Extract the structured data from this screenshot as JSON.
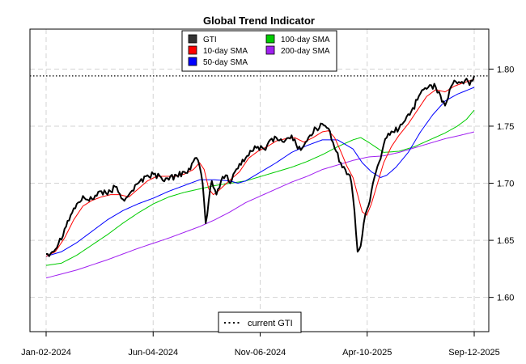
{
  "chart_data": {
    "type": "line",
    "title": "Global Trend Indicator",
    "xlabel": "",
    "ylabel": "",
    "ylim": [
      1.57,
      1.835
    ],
    "x_ticks": [
      "Jan-02-2024",
      "Jun-04-2024",
      "Nov-06-2024",
      "Apr-10-2025",
      "Sep-12-2025"
    ],
    "y_ticks": [
      "1.60",
      "1.65",
      "1.70",
      "1.75",
      "1.80"
    ],
    "y_tick_values": [
      1.6,
      1.65,
      1.7,
      1.75,
      1.8
    ],
    "grid": true,
    "current_gti": 1.794,
    "legend": {
      "top": [
        {
          "label": "GTI",
          "color": "#333333"
        },
        {
          "label": "100-day SMA",
          "color": "#00cc00"
        },
        {
          "label": "10-day SMA",
          "color": "#ff0000"
        },
        {
          "label": "200-day SMA",
          "color": "#a020f0"
        },
        {
          "label": "50-day SMA",
          "color": "#0000ff"
        }
      ],
      "bottom": {
        "label": "current GTI"
      }
    },
    "series": [
      {
        "name": "GTI",
        "color": "#000000",
        "anchors": [
          [
            0,
            1.638
          ],
          [
            4,
            1.64
          ],
          [
            8,
            1.647
          ],
          [
            12,
            1.66
          ],
          [
            16,
            1.672
          ],
          [
            20,
            1.682
          ],
          [
            25,
            1.687
          ],
          [
            30,
            1.686
          ],
          [
            35,
            1.693
          ],
          [
            40,
            1.69
          ],
          [
            45,
            1.697
          ],
          [
            50,
            1.686
          ],
          [
            55,
            1.692
          ],
          [
            60,
            1.7
          ],
          [
            65,
            1.706
          ],
          [
            70,
            1.708
          ],
          [
            75,
            1.705
          ],
          [
            80,
            1.703
          ],
          [
            85,
            1.707
          ],
          [
            90,
            1.71
          ],
          [
            94,
            1.712
          ],
          [
            97,
            1.722
          ],
          [
            100,
            1.715
          ],
          [
            102,
            1.7
          ],
          [
            104,
            1.665
          ],
          [
            106,
            1.685
          ],
          [
            108,
            1.702
          ],
          [
            111,
            1.69
          ],
          [
            114,
            1.702
          ],
          [
            117,
            1.707
          ],
          [
            120,
            1.7
          ],
          [
            123,
            1.71
          ],
          [
            126,
            1.717
          ],
          [
            130,
            1.722
          ],
          [
            134,
            1.728
          ],
          [
            138,
            1.732
          ],
          [
            142,
            1.73
          ],
          [
            146,
            1.738
          ],
          [
            150,
            1.74
          ],
          [
            155,
            1.736
          ],
          [
            160,
            1.742
          ],
          [
            164,
            1.73
          ],
          [
            168,
            1.733
          ],
          [
            172,
            1.742
          ],
          [
            176,
            1.748
          ],
          [
            180,
            1.752
          ],
          [
            184,
            1.748
          ],
          [
            186,
            1.738
          ],
          [
            189,
            1.728
          ],
          [
            192,
            1.718
          ],
          [
            195,
            1.712
          ],
          [
            197,
            1.708
          ],
          [
            199,
            1.7
          ],
          [
            201,
            1.675
          ],
          [
            203,
            1.64
          ],
          [
            205,
            1.645
          ],
          [
            207,
            1.665
          ],
          [
            210,
            1.68
          ],
          [
            213,
            1.7
          ],
          [
            216,
            1.715
          ],
          [
            219,
            1.728
          ],
          [
            222,
            1.74
          ],
          [
            226,
            1.745
          ],
          [
            230,
            1.748
          ],
          [
            234,
            1.755
          ],
          [
            238,
            1.763
          ],
          [
            242,
            1.773
          ],
          [
            246,
            1.782
          ],
          [
            250,
            1.786
          ],
          [
            254,
            1.784
          ],
          [
            257,
            1.777
          ],
          [
            260,
            1.768
          ],
          [
            263,
            1.782
          ],
          [
            266,
            1.79
          ],
          [
            270,
            1.788
          ],
          [
            273,
            1.79
          ],
          [
            276,
            1.786
          ],
          [
            279,
            1.794
          ]
        ]
      },
      {
        "name": "10-day SMA",
        "color": "#ff0000",
        "anchors": [
          [
            0,
            1.636
          ],
          [
            6,
            1.64
          ],
          [
            12,
            1.652
          ],
          [
            18,
            1.668
          ],
          [
            24,
            1.68
          ],
          [
            30,
            1.685
          ],
          [
            36,
            1.688
          ],
          [
            42,
            1.69
          ],
          [
            48,
            1.69
          ],
          [
            54,
            1.688
          ],
          [
            60,
            1.695
          ],
          [
            66,
            1.702
          ],
          [
            72,
            1.706
          ],
          [
            78,
            1.706
          ],
          [
            84,
            1.706
          ],
          [
            90,
            1.708
          ],
          [
            96,
            1.712
          ],
          [
            100,
            1.718
          ],
          [
            103,
            1.712
          ],
          [
            106,
            1.695
          ],
          [
            109,
            1.69
          ],
          [
            112,
            1.693
          ],
          [
            116,
            1.698
          ],
          [
            120,
            1.703
          ],
          [
            126,
            1.71
          ],
          [
            132,
            1.722
          ],
          [
            138,
            1.728
          ],
          [
            144,
            1.732
          ],
          [
            150,
            1.737
          ],
          [
            156,
            1.739
          ],
          [
            162,
            1.74
          ],
          [
            168,
            1.736
          ],
          [
            174,
            1.74
          ],
          [
            180,
            1.745
          ],
          [
            184,
            1.746
          ],
          [
            188,
            1.74
          ],
          [
            192,
            1.728
          ],
          [
            196,
            1.715
          ],
          [
            200,
            1.705
          ],
          [
            203,
            1.69
          ],
          [
            206,
            1.675
          ],
          [
            209,
            1.672
          ],
          [
            212,
            1.682
          ],
          [
            216,
            1.7
          ],
          [
            220,
            1.718
          ],
          [
            225,
            1.732
          ],
          [
            230,
            1.742
          ],
          [
            236,
            1.752
          ],
          [
            242,
            1.764
          ],
          [
            248,
            1.776
          ],
          [
            254,
            1.782
          ],
          [
            260,
            1.78
          ],
          [
            266,
            1.785
          ],
          [
            272,
            1.788
          ],
          [
            279,
            1.791
          ]
        ]
      },
      {
        "name": "50-day SMA",
        "color": "#0000ff",
        "anchors": [
          [
            0,
            1.636
          ],
          [
            10,
            1.64
          ],
          [
            20,
            1.648
          ],
          [
            30,
            1.658
          ],
          [
            40,
            1.668
          ],
          [
            50,
            1.676
          ],
          [
            60,
            1.682
          ],
          [
            70,
            1.687
          ],
          [
            80,
            1.693
          ],
          [
            90,
            1.698
          ],
          [
            100,
            1.703
          ],
          [
            110,
            1.703
          ],
          [
            120,
            1.702
          ],
          [
            125,
            1.7
          ],
          [
            130,
            1.702
          ],
          [
            140,
            1.71
          ],
          [
            150,
            1.718
          ],
          [
            160,
            1.727
          ],
          [
            170,
            1.733
          ],
          [
            180,
            1.738
          ],
          [
            190,
            1.738
          ],
          [
            200,
            1.73
          ],
          [
            206,
            1.718
          ],
          [
            212,
            1.71
          ],
          [
            218,
            1.705
          ],
          [
            222,
            1.707
          ],
          [
            228,
            1.714
          ],
          [
            236,
            1.727
          ],
          [
            244,
            1.745
          ],
          [
            252,
            1.76
          ],
          [
            260,
            1.772
          ],
          [
            268,
            1.778
          ],
          [
            279,
            1.784
          ]
        ]
      },
      {
        "name": "100-day SMA",
        "color": "#00cc00",
        "anchors": [
          [
            0,
            1.628
          ],
          [
            10,
            1.63
          ],
          [
            20,
            1.637
          ],
          [
            30,
            1.646
          ],
          [
            40,
            1.655
          ],
          [
            50,
            1.665
          ],
          [
            60,
            1.674
          ],
          [
            70,
            1.682
          ],
          [
            80,
            1.688
          ],
          [
            90,
            1.692
          ],
          [
            100,
            1.695
          ],
          [
            110,
            1.698
          ],
          [
            120,
            1.7
          ],
          [
            130,
            1.702
          ],
          [
            140,
            1.706
          ],
          [
            150,
            1.71
          ],
          [
            160,
            1.714
          ],
          [
            170,
            1.719
          ],
          [
            180,
            1.725
          ],
          [
            190,
            1.732
          ],
          [
            200,
            1.738
          ],
          [
            205,
            1.74
          ],
          [
            210,
            1.736
          ],
          [
            220,
            1.727
          ],
          [
            230,
            1.728
          ],
          [
            240,
            1.732
          ],
          [
            250,
            1.738
          ],
          [
            260,
            1.744
          ],
          [
            268,
            1.75
          ],
          [
            274,
            1.756
          ],
          [
            279,
            1.764
          ]
        ]
      },
      {
        "name": "200-day SMA",
        "color": "#a020f0",
        "anchors": [
          [
            0,
            1.617
          ],
          [
            20,
            1.624
          ],
          [
            40,
            1.633
          ],
          [
            60,
            1.643
          ],
          [
            80,
            1.652
          ],
          [
            100,
            1.662
          ],
          [
            110,
            1.668
          ],
          [
            120,
            1.675
          ],
          [
            130,
            1.683
          ],
          [
            140,
            1.689
          ],
          [
            150,
            1.695
          ],
          [
            160,
            1.701
          ],
          [
            170,
            1.706
          ],
          [
            180,
            1.712
          ],
          [
            190,
            1.716
          ],
          [
            200,
            1.72
          ],
          [
            210,
            1.723
          ],
          [
            220,
            1.724
          ],
          [
            230,
            1.727
          ],
          [
            240,
            1.731
          ],
          [
            250,
            1.735
          ],
          [
            260,
            1.739
          ],
          [
            270,
            1.742
          ],
          [
            279,
            1.745
          ]
        ]
      }
    ]
  }
}
